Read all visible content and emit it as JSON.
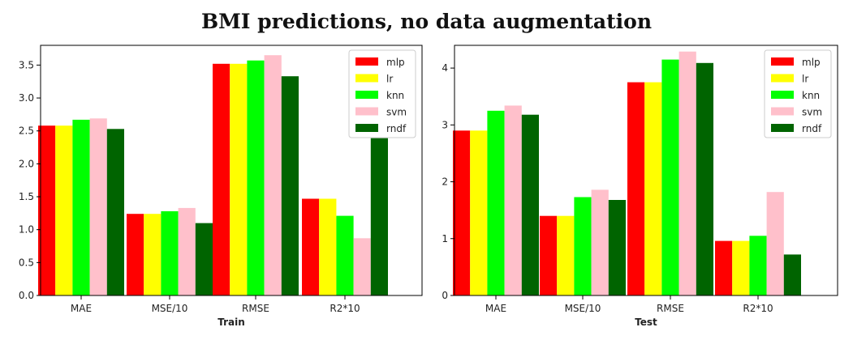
{
  "title": "BMI predictions, no data augmentation",
  "chart_data": [
    {
      "type": "bar",
      "xlabel": "Train",
      "ylabel": "",
      "categories": [
        "MAE",
        "MSE/10",
        "RMSE",
        "R2*10"
      ],
      "ylim": [
        0,
        3.8
      ],
      "yticks": [
        "0.0",
        "0.5",
        "1.0",
        "1.5",
        "2.0",
        "2.5",
        "3.0",
        "3.5"
      ],
      "legend": "top-right",
      "grid": false,
      "series": [
        {
          "name": "mlp",
          "color": "#ff0000",
          "values": [
            2.58,
            1.24,
            3.52,
            1.47
          ]
        },
        {
          "name": "lr",
          "color": "#ffff00",
          "values": [
            2.58,
            1.24,
            3.52,
            1.47
          ]
        },
        {
          "name": "knn",
          "color": "#00ff00",
          "values": [
            2.67,
            1.28,
            3.57,
            1.21
          ]
        },
        {
          "name": "svm",
          "color": "#ffc0cb",
          "values": [
            2.69,
            1.33,
            3.65,
            0.87
          ]
        },
        {
          "name": "rndf",
          "color": "#006400",
          "values": [
            2.53,
            1.1,
            3.33,
            2.39
          ]
        }
      ]
    },
    {
      "type": "bar",
      "xlabel": "Test",
      "ylabel": "",
      "categories": [
        "MAE",
        "MSE/10",
        "RMSE",
        "R2*10"
      ],
      "ylim": [
        0,
        4.4
      ],
      "yticks": [
        "0",
        "1",
        "2",
        "3",
        "4"
      ],
      "legend": "top-right",
      "grid": false,
      "series": [
        {
          "name": "mlp",
          "color": "#ff0000",
          "values": [
            2.9,
            1.4,
            3.75,
            0.96
          ]
        },
        {
          "name": "lr",
          "color": "#ffff00",
          "values": [
            2.9,
            1.4,
            3.75,
            0.96
          ]
        },
        {
          "name": "knn",
          "color": "#00ff00",
          "values": [
            3.25,
            1.73,
            4.15,
            1.05
          ]
        },
        {
          "name": "svm",
          "color": "#ffc0cb",
          "values": [
            3.34,
            1.86,
            4.29,
            1.82
          ]
        },
        {
          "name": "rndf",
          "color": "#006400",
          "values": [
            3.18,
            1.68,
            4.09,
            0.72
          ]
        }
      ]
    }
  ]
}
